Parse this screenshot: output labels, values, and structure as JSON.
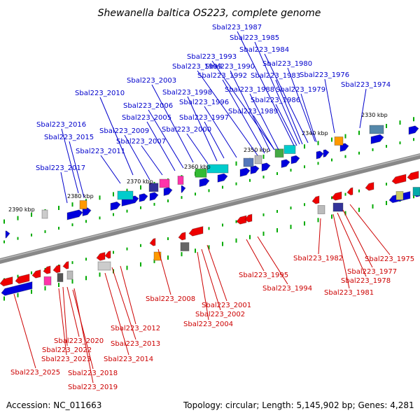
{
  "title": "Shewanella baltica OS223, complete genome",
  "accession": "Accession: NC_011663",
  "topology": "Topology: circular; Length: 5,145,902 bp; Genes: 4,281",
  "colors": {
    "upper_label": "#0000cc",
    "lower_label": "#cc0000",
    "forward_gene": "#0000dd",
    "reverse_gene": "#ee0000",
    "backbone": "#888888",
    "tick": "#00aa00"
  },
  "scale_labels": [
    "2330 kbp",
    "2340 kbp",
    "2350 kbp",
    "2360 kbp",
    "2370 kbp",
    "2380 kbp",
    "2390 kbp"
  ],
  "upper_genes": [
    "Sbal223_1987",
    "Sbal223_1985",
    "Sbal223_1984",
    "Sbal223_1993",
    "Sbal223_1980",
    "Sbal223_1999",
    "Sbal223_1990",
    "Sbal223_1992",
    "Sbal223_1983",
    "Sbal223_1976",
    "Sbal223_2003",
    "Sbal223_1974",
    "Sbal223_1988",
    "Sbal223_1979",
    "Sbal223_2010",
    "Sbal223_1998",
    "Sbal223_1986",
    "Sbal223_1996",
    "Sbal223_2006",
    "Sbal223_1989",
    "Sbal223_2005",
    "Sbal223_1997",
    "Sbal223_2016",
    "Sbal223_2009",
    "Sbal223_2000",
    "Sbal223_2015",
    "Sbal223_2007",
    "Sbal223_2011",
    "Sbal223_2017"
  ],
  "lower_genes": [
    "Sbal223_1982",
    "Sbal223_1975",
    "Sbal223_1995",
    "Sbal223_1977",
    "Sbal223_1978",
    "Sbal223_1994",
    "Sbal223_1981",
    "Sbal223_2008",
    "Sbal223_2001",
    "Sbal223_2002",
    "Sbal223_2004",
    "Sbal223_2012",
    "Sbal223_2020",
    "Sbal223_2013",
    "Sbal223_2022",
    "Sbal223_2023",
    "Sbal223_2014",
    "Sbal223_2025",
    "Sbal223_2018",
    "Sbal223_2019"
  ]
}
